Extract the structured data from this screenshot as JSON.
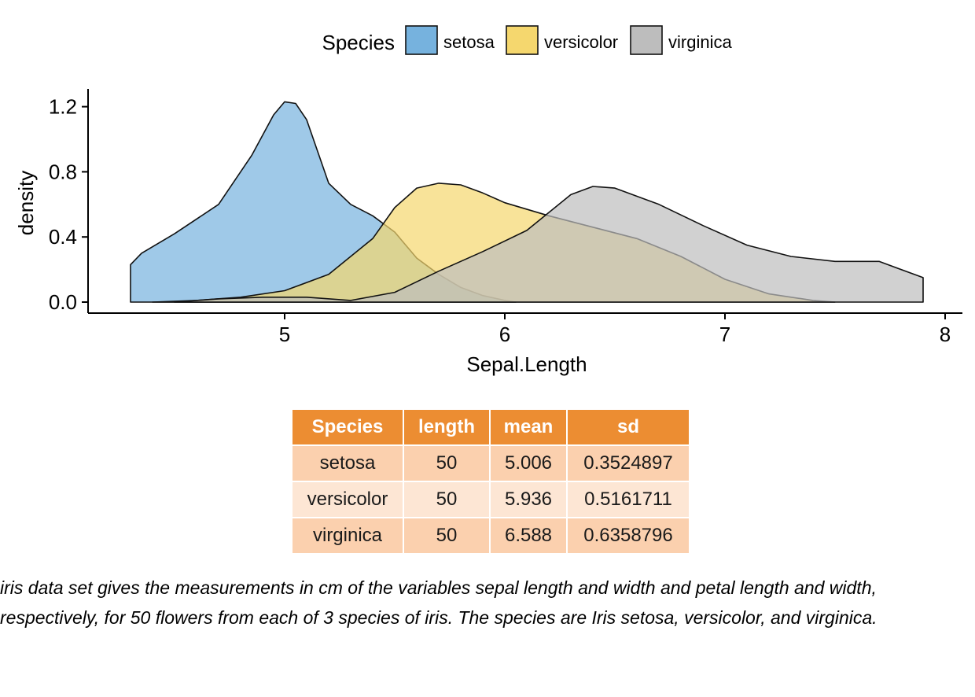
{
  "chart_data": {
    "type": "area",
    "subtype": "density",
    "xlabel": "Sepal.Length",
    "ylabel": "density",
    "xlim": [
      4.1,
      8.1
    ],
    "ylim": [
      0,
      1.3
    ],
    "xticks": [
      "5",
      "6",
      "7",
      "8"
    ],
    "yticks": [
      "0.0",
      "0.4",
      "0.8",
      "1.2"
    ],
    "grid": false,
    "legend": {
      "title": "Species",
      "position": "top"
    },
    "series": [
      {
        "name": "setosa",
        "color": "#76b2de",
        "x": [
          4.3,
          4.35,
          4.5,
          4.7,
          4.85,
          4.95,
          5.0,
          5.05,
          5.1,
          5.2,
          5.3,
          5.4,
          5.5,
          5.6,
          5.7,
          5.8,
          5.9,
          6.0,
          6.05
        ],
        "y": [
          0.23,
          0.3,
          0.42,
          0.6,
          0.9,
          1.15,
          1.23,
          1.22,
          1.12,
          0.73,
          0.6,
          0.53,
          0.43,
          0.27,
          0.17,
          0.09,
          0.04,
          0.01,
          0.0
        ]
      },
      {
        "name": "versicolor",
        "color": "#f5d76e",
        "x": [
          4.4,
          4.6,
          4.8,
          5.0,
          5.2,
          5.4,
          5.5,
          5.6,
          5.7,
          5.8,
          5.9,
          6.0,
          6.2,
          6.4,
          6.6,
          6.8,
          7.0,
          7.2,
          7.4,
          7.5
        ],
        "y": [
          0.0,
          0.01,
          0.03,
          0.07,
          0.17,
          0.39,
          0.58,
          0.7,
          0.73,
          0.72,
          0.67,
          0.61,
          0.53,
          0.46,
          0.39,
          0.28,
          0.14,
          0.05,
          0.01,
          0.0
        ]
      },
      {
        "name": "virginica",
        "color": "#bdbdbd",
        "x": [
          4.5,
          4.7,
          4.9,
          5.1,
          5.3,
          5.5,
          5.7,
          5.9,
          6.1,
          6.3,
          6.4,
          6.5,
          6.7,
          6.9,
          7.1,
          7.3,
          7.5,
          7.7,
          7.9
        ],
        "y": [
          0.0,
          0.02,
          0.03,
          0.03,
          0.01,
          0.06,
          0.19,
          0.31,
          0.44,
          0.66,
          0.71,
          0.7,
          0.6,
          0.47,
          0.35,
          0.28,
          0.25,
          0.25,
          0.15
        ]
      }
    ]
  },
  "table": {
    "headers": [
      "Species",
      "length",
      "mean",
      "sd"
    ],
    "rows": [
      [
        "setosa",
        "50",
        "5.006",
        "0.3524897"
      ],
      [
        "versicolor",
        "50",
        "5.936",
        "0.5161711"
      ],
      [
        "virginica",
        "50",
        "6.588",
        "0.6358796"
      ]
    ],
    "header_color": "#ec8d32",
    "row_colors": [
      "#fbd0ae",
      "#fde6d4"
    ]
  },
  "caption": "iris data set gives the measurements in cm of the variables sepal length and width and petal length and width, respectively, for 50 flowers from each of 3 species of iris. The species are Iris setosa, versicolor, and virginica."
}
